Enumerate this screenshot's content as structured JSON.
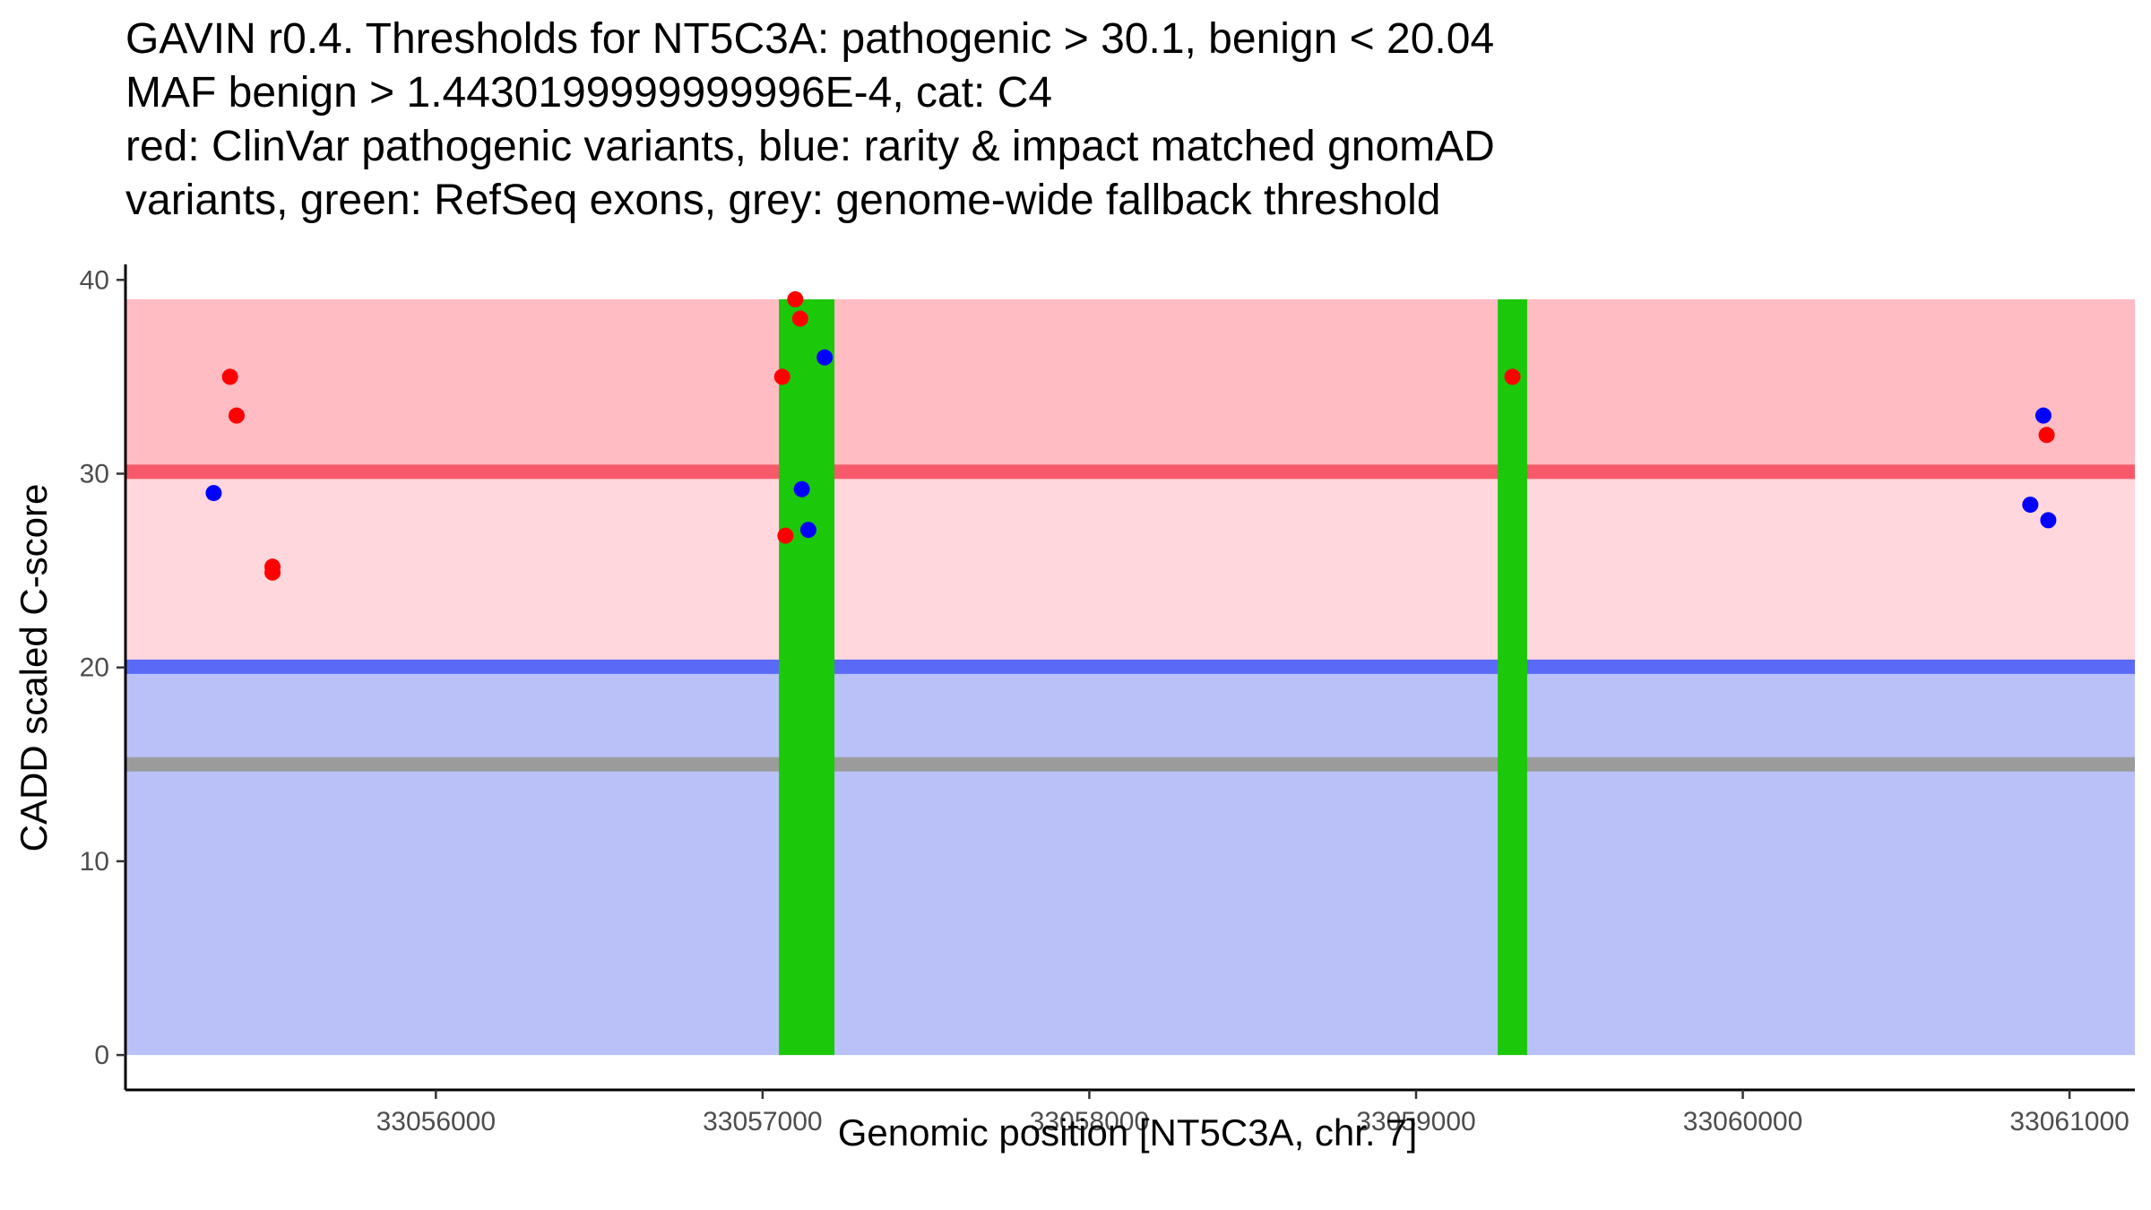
{
  "chart_data": {
    "type": "scatter",
    "title_lines": [
      "GAVIN r0.4. Thresholds for NT5C3A: pathogenic > 30.1, benign < 20.04",
      "MAF benign > 1.4430199999999996E-4, cat: C4",
      "red: ClinVar pathogenic variants, blue: rarity & impact matched gnomAD",
      "variants, green: RefSeq exons, grey: genome-wide fallback threshold"
    ],
    "xlabel": "Genomic position [NT5C3A, chr. 7]",
    "ylabel": "CADD scaled C-score",
    "xlim": [
      33055050,
      33061200
    ],
    "ylim": [
      -1.8,
      40.8
    ],
    "x_ticks": [
      33056000,
      33057000,
      33058000,
      33059000,
      33060000,
      33061000
    ],
    "y_ticks": [
      0,
      10,
      20,
      30,
      40
    ],
    "grid": false,
    "regions": {
      "pathogenic_band": {
        "y": [
          30.1,
          39
        ],
        "color": "#ffbcc2"
      },
      "middle_band": {
        "y": [
          20.04,
          30.1
        ],
        "color": "#ffd7dc"
      },
      "benign_band": {
        "y": [
          0,
          20.04
        ],
        "color": "#bac1f9"
      },
      "pathogenic_threshold": {
        "y": 30.1,
        "color": "#f65a6a"
      },
      "benign_threshold": {
        "y": 20.04,
        "color": "#5a6af7"
      },
      "fallback_threshold": {
        "y": 15,
        "color": "#9b9b9b"
      }
    },
    "exons": [
      {
        "start": 33057050,
        "end": 33057220,
        "color": "#1bc80a"
      },
      {
        "start": 33059250,
        "end": 33059340,
        "color": "#1bc80a"
      }
    ],
    "series": [
      {
        "name": "ClinVar pathogenic variants",
        "color": "#ff0000",
        "points": [
          [
            33055370,
            35
          ],
          [
            33055390,
            33
          ],
          [
            33055500,
            25.2
          ],
          [
            33055500,
            24.9
          ],
          [
            33057060,
            35
          ],
          [
            33057070,
            26.8
          ],
          [
            33057100,
            39
          ],
          [
            33057115,
            38
          ],
          [
            33059295,
            35
          ],
          [
            33060930,
            32
          ]
        ]
      },
      {
        "name": "rarity & impact matched gnomAD variants",
        "color": "#0000ff",
        "points": [
          [
            33055320,
            29
          ],
          [
            33057120,
            29.2
          ],
          [
            33057140,
            27.1
          ],
          [
            33057190,
            36
          ],
          [
            33060880,
            28.4
          ],
          [
            33060920,
            33
          ],
          [
            33060935,
            27.6
          ]
        ]
      }
    ]
  }
}
